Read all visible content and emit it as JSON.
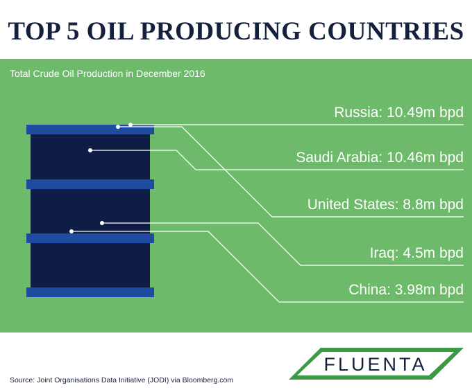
{
  "title": "TOP 5 OIL PRODUCING COUNTRIES",
  "source": "Source: Joint Organisations Data Initiative (JODI) via Bloomberg.com",
  "logo": {
    "text": "FLUENTA",
    "icon": "fluenta-logo"
  },
  "colors": {
    "title": "#14213d",
    "background_panel": "#6dbb6a",
    "barrel_body": "#0f1c45",
    "barrel_rings": "#1f4ba0",
    "label": "#ffffff"
  },
  "chart_data": {
    "type": "table",
    "title": "TOP 5 OIL PRODUCING COUNTRIES",
    "subtitle": "Total Crude Oil Production in December 2016",
    "unit": "m bpd",
    "categories": [
      "Russia",
      "Saudi Arabia",
      "United States",
      "Iraq",
      "China"
    ],
    "values": [
      10.49,
      10.46,
      8.8,
      4.5,
      3.98
    ],
    "labels": [
      "Russia: 10.49m bpd",
      "Saudi Arabia: 10.46m bpd",
      "United States: 8.8m bpd",
      "Iraq: 4.5m bpd",
      "China: 3.98m bpd"
    ]
  }
}
